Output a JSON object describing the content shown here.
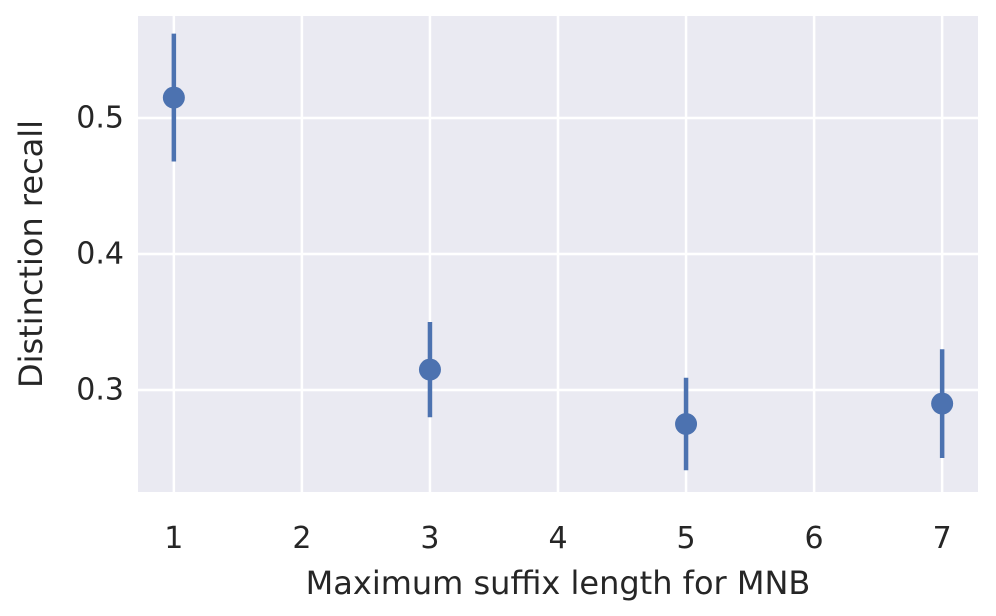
{
  "chart_data": {
    "type": "scatter",
    "title": "",
    "xlabel": "Maximum suffix length for MNB",
    "ylabel": "Distinction recall",
    "xlim": [
      0.72,
      7.28
    ],
    "ylim": [
      0.225,
      0.575
    ],
    "xticks": [
      1,
      2,
      3,
      4,
      5,
      6,
      7
    ],
    "xtick_labels": [
      "1",
      "2",
      "3",
      "4",
      "5",
      "6",
      "7"
    ],
    "yticks": [
      0.3,
      0.4,
      0.5
    ],
    "ytick_labels": [
      "0.3",
      "0.4",
      "0.5"
    ],
    "grid": true,
    "series": [
      {
        "color": "#4c72b0",
        "points": [
          {
            "x": 1,
            "y": 0.515,
            "err_low": 0.468,
            "err_high": 0.562
          },
          {
            "x": 3,
            "y": 0.315,
            "err_low": 0.28,
            "err_high": 0.35
          },
          {
            "x": 5,
            "y": 0.275,
            "err_low": 0.241,
            "err_high": 0.309
          },
          {
            "x": 7,
            "y": 0.29,
            "err_low": 0.25,
            "err_high": 0.33
          }
        ]
      }
    ],
    "colors": {
      "background": "#eaeaf2",
      "grid": "#ffffff",
      "marker": "#4c72b0",
      "text": "#262626"
    }
  }
}
